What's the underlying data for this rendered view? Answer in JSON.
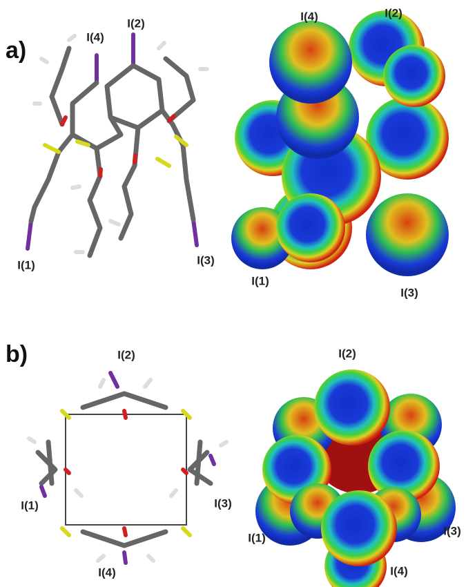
{
  "panels": [
    {
      "label": "a)",
      "structure": {
        "labels": [
          "I(4)",
          "I(2)",
          "I(1)",
          "I(3)"
        ]
      },
      "surface": {
        "labels": [
          "I(4)",
          "I(2)",
          "I(1)",
          "I(3)"
        ]
      }
    },
    {
      "label": "b)",
      "structure": {
        "labels": [
          "I(2)",
          "I(1)",
          "I(3)",
          "I(4)"
        ]
      },
      "surface": {
        "labels": [
          "I(2)",
          "I(1)",
          "I(3)",
          "I(4)"
        ]
      }
    }
  ]
}
